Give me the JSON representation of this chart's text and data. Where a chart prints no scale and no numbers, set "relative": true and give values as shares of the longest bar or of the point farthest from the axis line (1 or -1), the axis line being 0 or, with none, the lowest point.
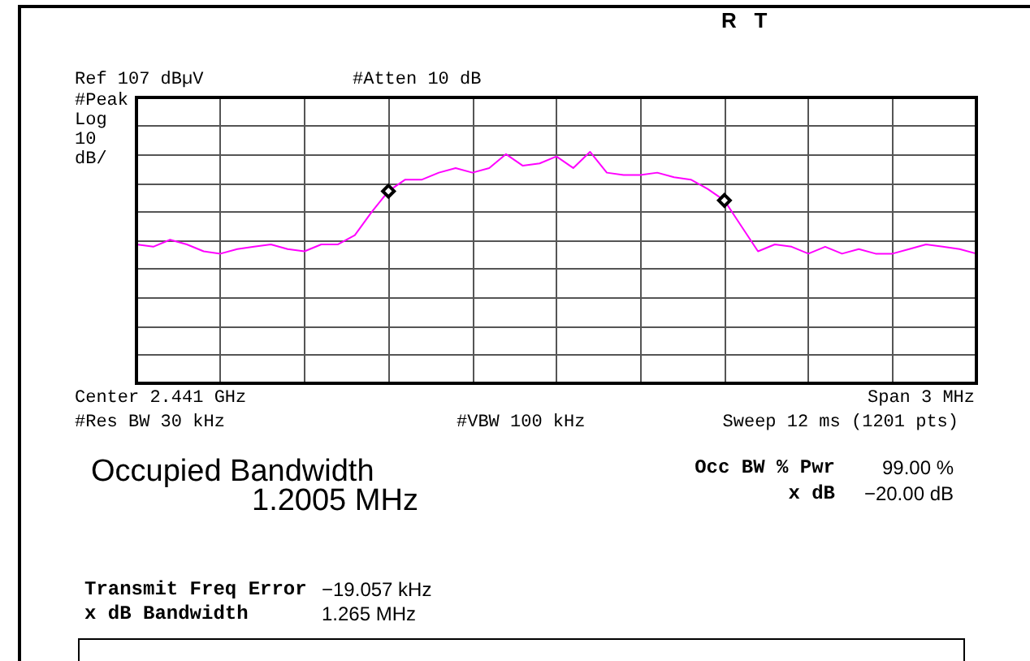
{
  "chart_data": {
    "type": "line",
    "title": "Occupied Bandwidth",
    "annotations": [
      "R   T",
      "Ref 107 dBµV",
      "#Atten 10 dB",
      "#Peak",
      "Log",
      "10",
      "dB/",
      "Center 2.441 GHz",
      "Span 3 MHz",
      "#Res BW 30 kHz",
      "#VBW 100 kHz",
      "Sweep 12 ms (1201 pts)",
      "1.2005 MHz",
      "Occ BW % Pwr",
      "99.00 %",
      "x dB",
      "−20.00 dB",
      "Transmit Freq Error",
      "−19.057 kHz",
      "x dB Bandwidth",
      "1.265 MHz"
    ],
    "relative": true,
    "categories": [
      null,
      null,
      null,
      null,
      null,
      null,
      null,
      null,
      null,
      null,
      null,
      null,
      null,
      null,
      null,
      null,
      null,
      null,
      null,
      null,
      null,
      null,
      null,
      null,
      null,
      null,
      null,
      null,
      null,
      null,
      null,
      null,
      null,
      null,
      null,
      null,
      null,
      null,
      null,
      null,
      null,
      null,
      null,
      null,
      null,
      null,
      null,
      null,
      null,
      null,
      null
    ],
    "grid": true,
    "series": [
      {
        "color": "#ff00ff",
        "marker": "none",
        "values": [
          0.6,
          0.59,
          0.62,
          0.6,
          0.57,
          0.56,
          0.58,
          0.59,
          0.6,
          0.58,
          0.57,
          0.6,
          0.6,
          0.64,
          0.74,
          0.83,
          0.88,
          0.88,
          0.91,
          0.93,
          0.91,
          0.93,
          0.99,
          0.94,
          0.95,
          0.98,
          0.93,
          1,
          0.91,
          0.9,
          0.9,
          0.91,
          0.89,
          0.88,
          0.84,
          0.79,
          0.68,
          0.57,
          0.6,
          0.59,
          0.56,
          0.59,
          0.56,
          0.58,
          0.56,
          0.56,
          0.58,
          0.6,
          0.59,
          0.58,
          0.56
        ]
      },
      {
        "color": "#000000",
        "marker": "diamond",
        "values": [
          null,
          null,
          null,
          null,
          null,
          null,
          null,
          null,
          null,
          null,
          null,
          null,
          null,
          null,
          null,
          0.83,
          null,
          null,
          null,
          null,
          null,
          null,
          null,
          null,
          null,
          null,
          null,
          null,
          null,
          null,
          null,
          null,
          null,
          null,
          null,
          0.79,
          null,
          null,
          null,
          null,
          null,
          null,
          null,
          null,
          null,
          null,
          null,
          null,
          null,
          null,
          null
        ]
      }
    ]
  }
}
